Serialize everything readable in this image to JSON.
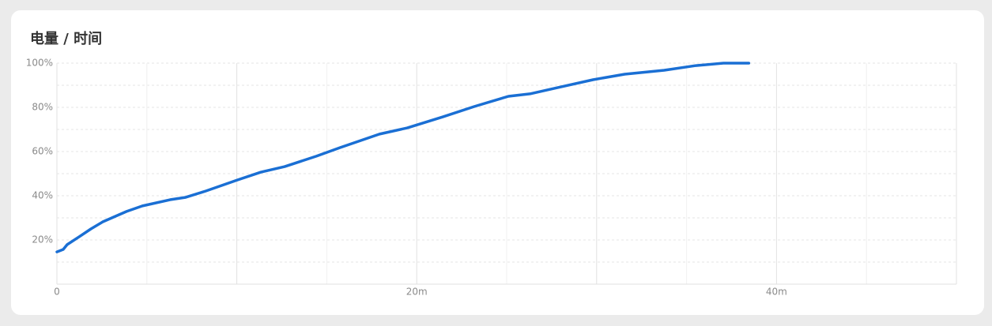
{
  "chart_data": {
    "type": "line",
    "title": "电量 / 时间",
    "x": [
      0,
      0.35,
      0.57,
      1.23,
      1.89,
      2.55,
      3.87,
      4.75,
      6.29,
      7.16,
      8.26,
      10.02,
      11.34,
      12.66,
      14.42,
      15.74,
      17.93,
      19.47,
      21.45,
      23.21,
      25.1,
      26.29,
      27.82,
      29.8,
      31.56,
      33.76,
      35.52,
      37.05,
      38.46
    ],
    "series": [
      {
        "color": "#1a6fd4",
        "values": [
          14.6,
          15.7,
          17.9,
          21.4,
          25,
          28.2,
          32.9,
          35.4,
          38.2,
          39.3,
          42.1,
          47.1,
          50.7,
          53.2,
          57.9,
          61.8,
          67.9,
          70.7,
          75.7,
          80.4,
          85,
          86.1,
          88.9,
          92.5,
          95,
          96.8,
          98.9,
          100,
          100
        ]
      }
    ],
    "xlim": [
      0,
      50
    ],
    "xticks": [
      {
        "value": 0,
        "label": "0"
      },
      {
        "value": 20,
        "label": "20m"
      },
      {
        "value": 40,
        "label": "40m"
      }
    ],
    "xgrid": [
      0,
      5,
      10,
      15,
      20,
      25,
      30,
      35,
      40,
      45,
      50
    ],
    "ylim": [
      0,
      100
    ],
    "yticks": [
      {
        "value": 20,
        "label": "20%"
      },
      {
        "value": 40,
        "label": "40%"
      },
      {
        "value": 60,
        "label": "60%"
      },
      {
        "value": 80,
        "label": "80%"
      },
      {
        "value": 100,
        "label": "100%"
      }
    ],
    "ygrid": [
      10,
      20,
      30,
      40,
      50,
      60,
      70,
      80,
      90,
      100
    ],
    "grid": true
  }
}
